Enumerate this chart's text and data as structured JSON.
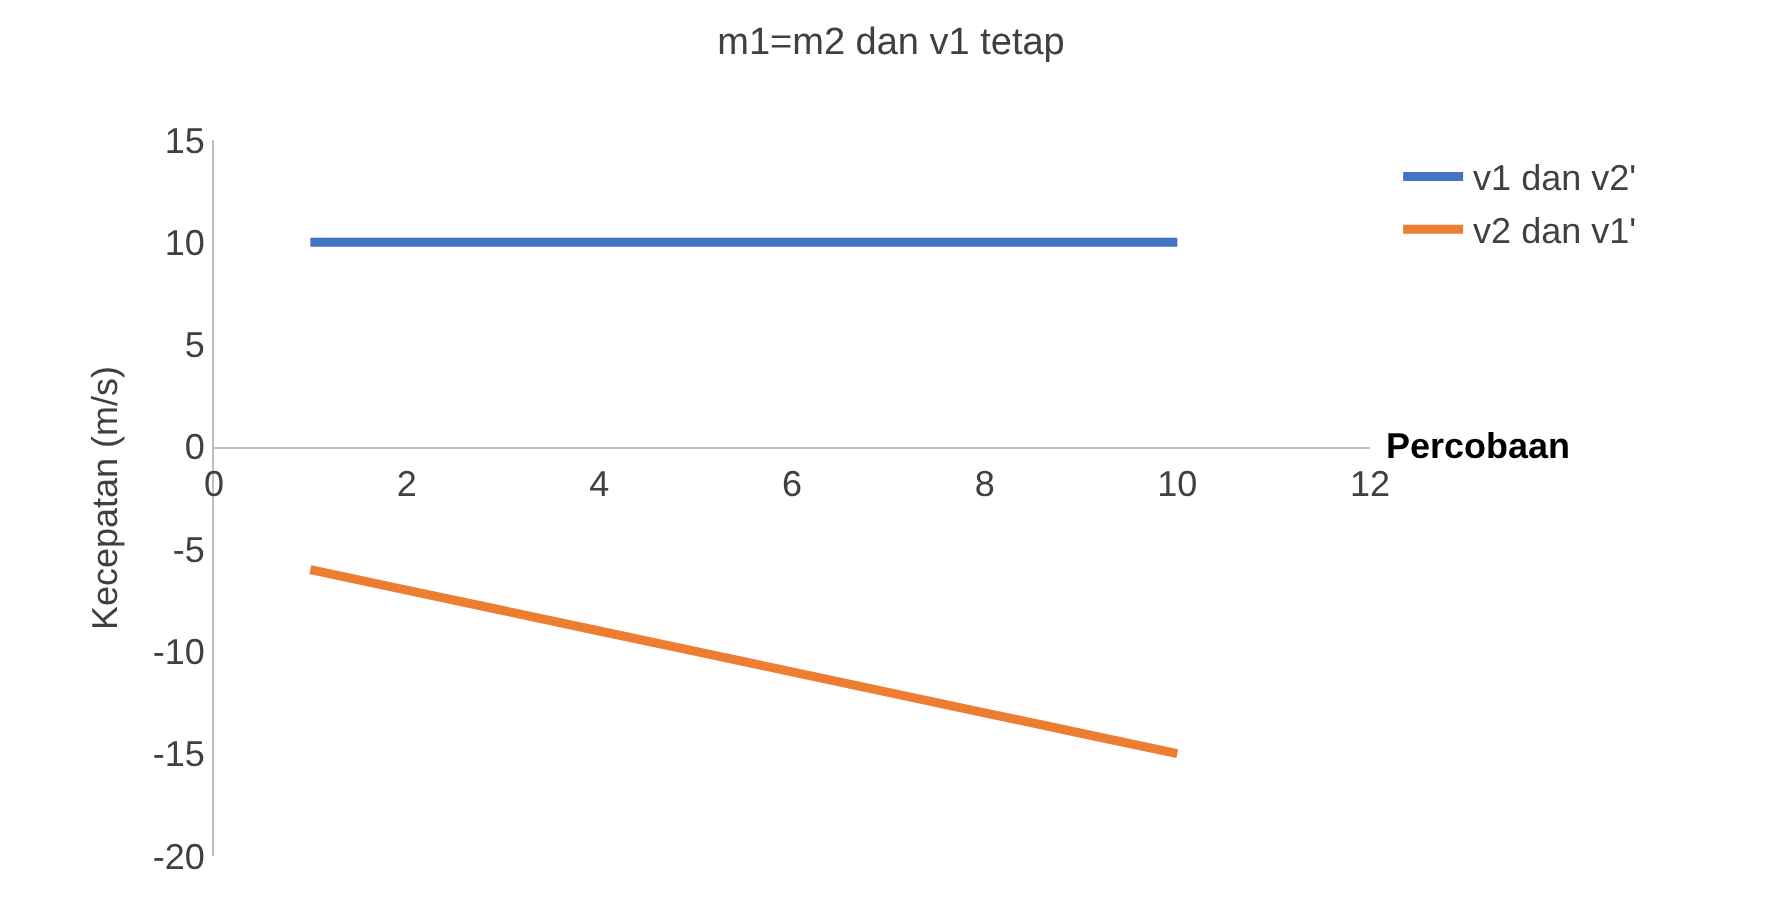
{
  "chart_data": {
    "type": "line",
    "title": "m1=m2 dan v1 tetap",
    "xlabel": "Percobaan",
    "ylabel": "Kecepatan (m/s)",
    "x": [
      1,
      2,
      3,
      4,
      5,
      6,
      7,
      8,
      9,
      10
    ],
    "series": [
      {
        "name": "v1 dan v2'",
        "color": "#4472c4",
        "values": [
          10,
          10,
          10,
          10,
          10,
          10,
          10,
          10,
          10,
          10
        ]
      },
      {
        "name": "v2 dan v1'",
        "color": "#ed7d31",
        "values": [
          -6,
          -7,
          -8,
          -9,
          -10,
          -11,
          -12,
          -13,
          -14,
          -15
        ]
      }
    ],
    "xlim": [
      0,
      12
    ],
    "xticks": [
      0,
      2,
      4,
      6,
      8,
      10,
      12
    ],
    "ylim": [
      -20,
      15
    ],
    "yticks": [
      -20,
      -15,
      -10,
      -5,
      0,
      5,
      10,
      15
    ],
    "grid": false,
    "legend": "top right",
    "marker": "none",
    "line_style": "solid"
  }
}
